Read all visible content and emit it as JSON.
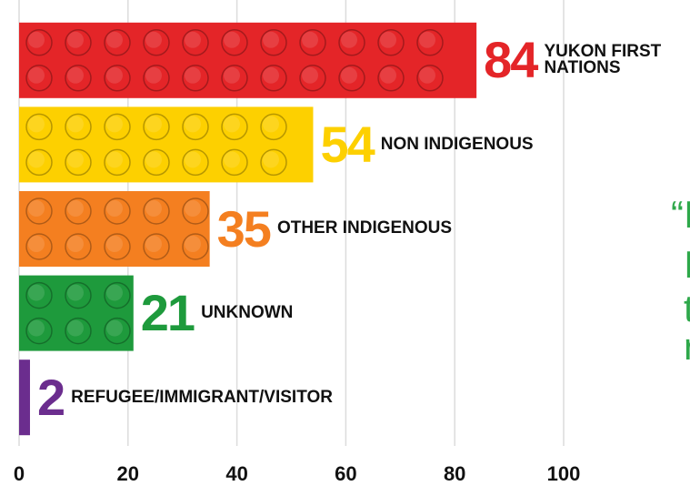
{
  "chart_data": {
    "type": "bar",
    "orientation": "horizontal",
    "categories": [
      "YUKON FIRST NATIONS",
      "NON INDIGENOUS",
      "OTHER INDIGENOUS",
      "UNKNOWN",
      "REFUGEE/IMMIGRANT/VISITOR"
    ],
    "values": [
      84,
      54,
      35,
      21,
      2
    ],
    "colors": [
      "#e42528",
      "#fdd000",
      "#f47f20",
      "#1e9a3c",
      "#6b2d8e"
    ],
    "xlim": [
      0,
      100
    ],
    "xticks": [
      0,
      20,
      40,
      60,
      80,
      100
    ],
    "grid": true,
    "quote_fragments": [
      "“I",
      "I",
      "t",
      "r"
    ],
    "quote_color": "#2ea84a"
  }
}
